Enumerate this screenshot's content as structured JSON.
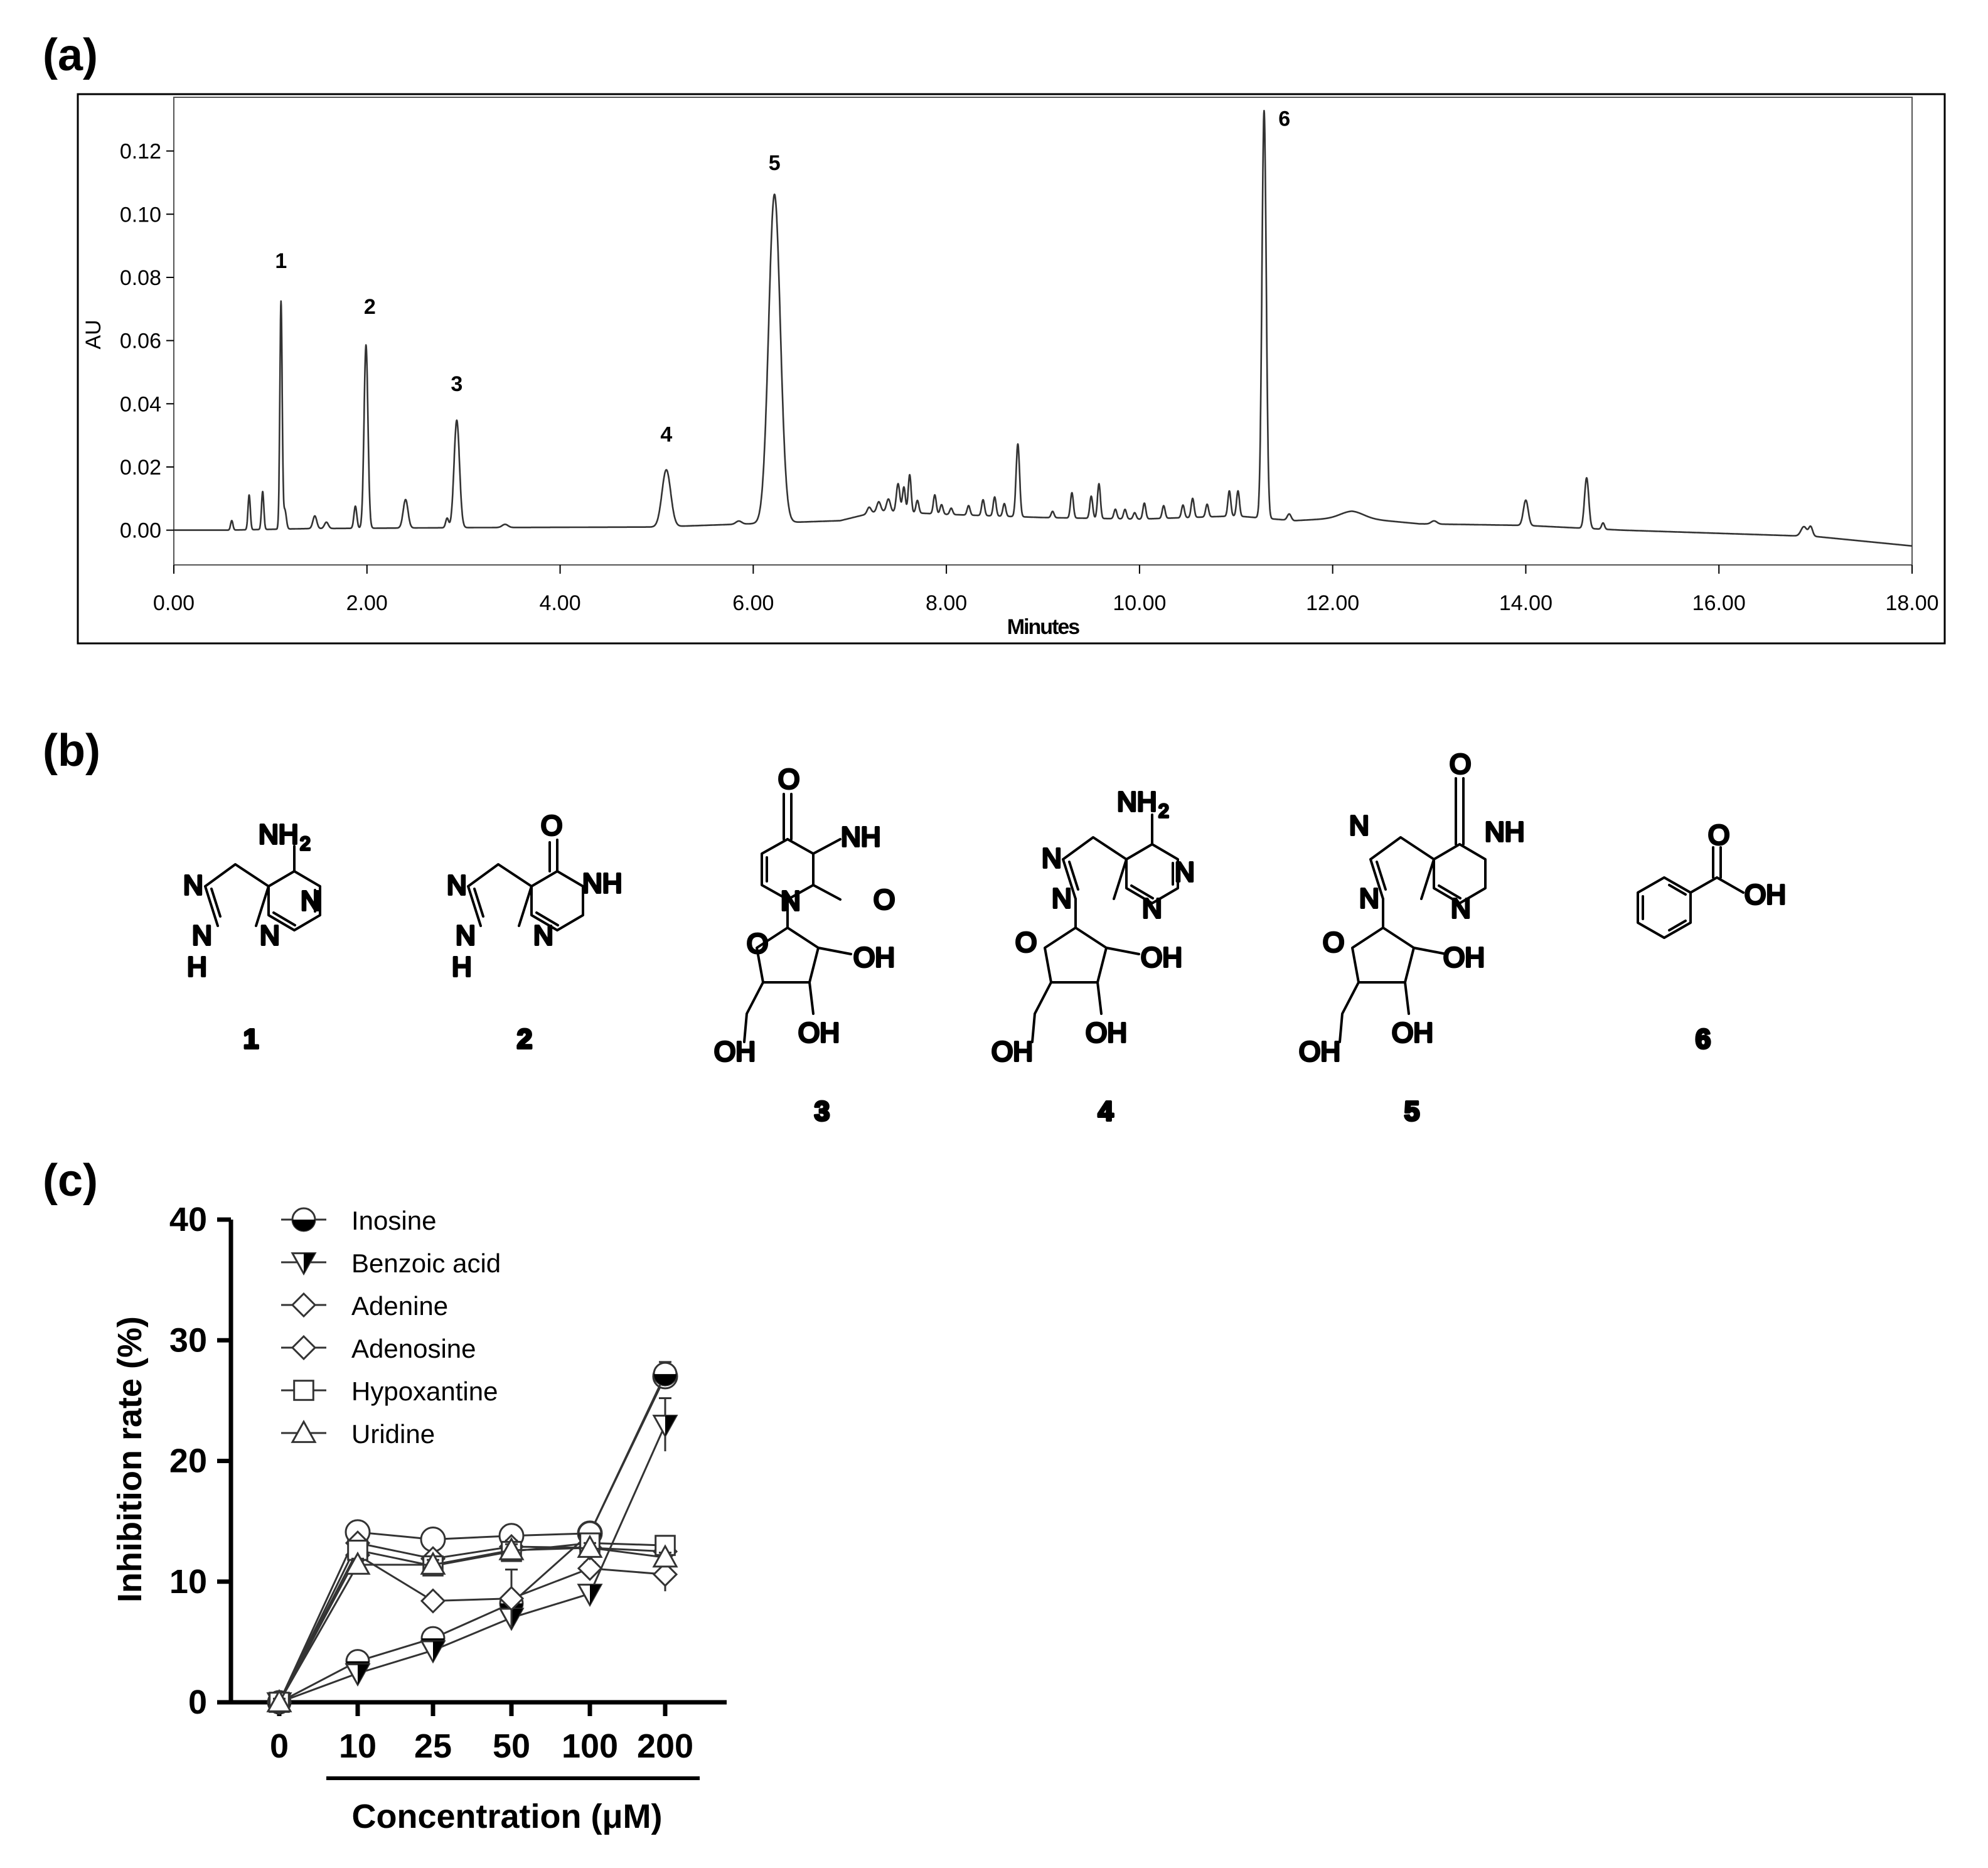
{
  "panels": {
    "a": {
      "label": "(a)",
      "chart_data": {
        "type": "line",
        "xlabel": "Minutes",
        "ylabel": "AU",
        "xlim": [
          0,
          18
        ],
        "ylim": [
          -0.011,
          0.137
        ],
        "x_ticks": [
          0,
          2,
          4,
          6,
          8,
          10,
          12,
          14,
          16,
          18
        ],
        "x_tick_labels": [
          "0.00",
          "2.00",
          "4.00",
          "6.00",
          "8.00",
          "10.00",
          "12.00",
          "14.00",
          "16.00",
          "18.00"
        ],
        "y_ticks": [
          0,
          0.02,
          0.04,
          0.06,
          0.08,
          0.1,
          0.12
        ],
        "y_tick_labels": [
          "0.00",
          "0.02",
          "0.04",
          "0.06",
          "0.08",
          "0.10",
          "0.12"
        ],
        "grid": false,
        "baseline": [
          [
            0,
            0.0
          ],
          [
            0.55,
            0.0
          ],
          [
            1.4,
            0.0005
          ],
          [
            3.0,
            0.0008
          ],
          [
            5.0,
            0.001
          ],
          [
            6.9,
            0.003
          ],
          [
            7.3,
            0.006
          ],
          [
            8.0,
            0.005
          ],
          [
            9.0,
            0.004
          ],
          [
            10.0,
            0.0035
          ],
          [
            11.0,
            0.0045
          ],
          [
            11.6,
            0.003
          ],
          [
            12.2,
            0.004
          ],
          [
            12.9,
            0.002
          ],
          [
            14.0,
            0.0015
          ],
          [
            15.0,
            0.0
          ],
          [
            16.0,
            -0.001
          ],
          [
            17.0,
            -0.002
          ],
          [
            18.0,
            -0.005
          ]
        ],
        "peaks": [
          {
            "t": 0.6,
            "h": 0.003,
            "w": 0.012
          },
          {
            "t": 0.78,
            "h": 0.011,
            "w": 0.012
          },
          {
            "t": 0.92,
            "h": 0.012,
            "w": 0.012
          },
          {
            "t": 1.11,
            "h": 0.072,
            "w": 0.012
          },
          {
            "t": 1.15,
            "h": 0.006,
            "w": 0.015
          },
          {
            "t": 1.46,
            "h": 0.004,
            "w": 0.02
          },
          {
            "t": 1.58,
            "h": 0.002,
            "w": 0.02
          },
          {
            "t": 1.88,
            "h": 0.007,
            "w": 0.015
          },
          {
            "t": 1.99,
            "h": 0.058,
            "w": 0.02
          },
          {
            "t": 2.4,
            "h": 0.009,
            "w": 0.025
          },
          {
            "t": 2.83,
            "h": 0.003,
            "w": 0.015
          },
          {
            "t": 2.93,
            "h": 0.034,
            "w": 0.028
          },
          {
            "t": 3.43,
            "h": 0.001,
            "w": 0.03
          },
          {
            "t": 5.1,
            "h": 0.018,
            "w": 0.045
          },
          {
            "t": 5.85,
            "h": 0.001,
            "w": 0.03
          },
          {
            "t": 6.22,
            "h": 0.104,
            "w": 0.06
          },
          {
            "t": 7.2,
            "h": 0.002,
            "w": 0.02
          },
          {
            "t": 7.3,
            "h": 0.003,
            "w": 0.02
          },
          {
            "t": 7.4,
            "h": 0.004,
            "w": 0.02
          },
          {
            "t": 7.5,
            "h": 0.009,
            "w": 0.018
          },
          {
            "t": 7.56,
            "h": 0.008,
            "w": 0.015
          },
          {
            "t": 7.62,
            "h": 0.012,
            "w": 0.015
          },
          {
            "t": 7.7,
            "h": 0.004,
            "w": 0.015
          },
          {
            "t": 7.88,
            "h": 0.006,
            "w": 0.015
          },
          {
            "t": 7.95,
            "h": 0.003,
            "w": 0.015
          },
          {
            "t": 8.05,
            "h": 0.002,
            "w": 0.015
          },
          {
            "t": 8.23,
            "h": 0.003,
            "w": 0.015
          },
          {
            "t": 8.38,
            "h": 0.005,
            "w": 0.015
          },
          {
            "t": 8.5,
            "h": 0.006,
            "w": 0.015
          },
          {
            "t": 8.6,
            "h": 0.004,
            "w": 0.015
          },
          {
            "t": 8.74,
            "h": 0.023,
            "w": 0.018
          },
          {
            "t": 9.1,
            "h": 0.002,
            "w": 0.015
          },
          {
            "t": 9.3,
            "h": 0.008,
            "w": 0.015
          },
          {
            "t": 9.5,
            "h": 0.007,
            "w": 0.015
          },
          {
            "t": 9.58,
            "h": 0.011,
            "w": 0.015
          },
          {
            "t": 9.75,
            "h": 0.003,
            "w": 0.015
          },
          {
            "t": 9.85,
            "h": 0.003,
            "w": 0.015
          },
          {
            "t": 9.95,
            "h": 0.002,
            "w": 0.015
          },
          {
            "t": 10.05,
            "h": 0.005,
            "w": 0.015
          },
          {
            "t": 10.25,
            "h": 0.004,
            "w": 0.015
          },
          {
            "t": 10.45,
            "h": 0.004,
            "w": 0.015
          },
          {
            "t": 10.55,
            "h": 0.006,
            "w": 0.015
          },
          {
            "t": 10.7,
            "h": 0.004,
            "w": 0.015
          },
          {
            "t": 10.93,
            "h": 0.008,
            "w": 0.015
          },
          {
            "t": 11.02,
            "h": 0.008,
            "w": 0.015
          },
          {
            "t": 11.29,
            "h": 0.129,
            "w": 0.022
          },
          {
            "t": 11.55,
            "h": 0.002,
            "w": 0.02
          },
          {
            "t": 12.2,
            "h": 0.002,
            "w": 0.12
          },
          {
            "t": 13.05,
            "h": 0.001,
            "w": 0.03
          },
          {
            "t": 14.0,
            "h": 0.008,
            "w": 0.025
          },
          {
            "t": 14.63,
            "h": 0.016,
            "w": 0.022
          },
          {
            "t": 14.8,
            "h": 0.002,
            "w": 0.015
          },
          {
            "t": 16.88,
            "h": 0.003,
            "w": 0.03
          },
          {
            "t": 16.95,
            "h": 0.003,
            "w": 0.02
          }
        ],
        "peak_labels": [
          {
            "label": "1",
            "t": 1.11,
            "y": 0.083
          },
          {
            "label": "2",
            "t": 2.03,
            "y": 0.0685
          },
          {
            "label": "3",
            "t": 2.93,
            "y": 0.044
          },
          {
            "label": "4",
            "t": 5.1,
            "y": 0.028
          },
          {
            "label": "5",
            "t": 6.22,
            "y": 0.114
          },
          {
            "label": "6",
            "t": 11.5,
            "y": 0.128
          }
        ]
      }
    },
    "b": {
      "label": "(b)",
      "compounds": [
        {
          "number": "1",
          "atoms": [
            "NH",
            "2",
            "N",
            "N",
            "N",
            "N",
            "H"
          ]
        },
        {
          "number": "2",
          "atoms": [
            "O",
            "NH",
            "N",
            "N",
            "N",
            "H"
          ]
        },
        {
          "number": "3",
          "atoms": [
            "O",
            "NH",
            "O",
            "N",
            "O",
            "OH",
            "OH",
            "OH"
          ]
        },
        {
          "number": "4",
          "atoms": [
            "NH",
            "2",
            "N",
            "N",
            "N",
            "N",
            "O",
            "OH",
            "OH",
            "OH"
          ]
        },
        {
          "number": "5",
          "atoms": [
            "O",
            "N",
            "NH",
            "N",
            "N",
            "O",
            "OH",
            "OH",
            "OH"
          ]
        },
        {
          "number": "6",
          "atoms": [
            "O",
            "OH"
          ]
        }
      ]
    },
    "c": {
      "label": "(c)",
      "chart_data": {
        "type": "line",
        "xlabel": "Concentration (μM)",
        "ylabel": "Inhibition rate (%)",
        "categories": [
          "0",
          "10",
          "25",
          "50",
          "100",
          "200"
        ],
        "ylim": [
          0,
          40
        ],
        "y_ticks": [
          0,
          10,
          20,
          30,
          40
        ],
        "y_tick_labels": [
          "0",
          "10",
          "20",
          "30",
          "40"
        ],
        "legend_position": "top-left",
        "grid": false,
        "series": [
          {
            "name": "Inosine",
            "marker": "circle-half",
            "values": [
              0,
              3.4,
              5.3,
              8.2,
              14.0,
              27.2
            ],
            "errors": [
              0.3,
              0.4,
              0.5,
              0.5,
              0.4,
              1.0
            ]
          },
          {
            "name": "Benzoic acid",
            "marker": "triangle-down-half",
            "values": [
              0,
              2.4,
              4.3,
              7.0,
              9.0,
              23.0
            ],
            "errors": [
              0.3,
              0.4,
              0.5,
              0.6,
              0.5,
              2.2
            ]
          },
          {
            "name": "Adenine",
            "marker": "diamond",
            "values": [
              0,
              12.2,
              8.4,
              8.6,
              11.1,
              10.6
            ],
            "errors": [
              0.3,
              0.5,
              0.5,
              2.4,
              0.5,
              1.4
            ]
          },
          {
            "name": "Adenosine",
            "marker": "diamond",
            "values": [
              0,
              13.2,
              11.9,
              12.9,
              12.8,
              12.5
            ],
            "errors": [
              0.3,
              0.4,
              0.4,
              0.5,
              0.4,
              0.4
            ]
          },
          {
            "name": "Hypoxantine",
            "marker": "square",
            "values": [
              0,
              12.6,
              11.3,
              12.5,
              13.2,
              13.0
            ],
            "errors": [
              0.3,
              0.4,
              0.4,
              0.5,
              0.4,
              0.4
            ]
          },
          {
            "name": "Uridine",
            "marker": "triangle-up",
            "values": [
              0,
              11.4,
              11.4,
              12.6,
              12.8,
              12.0
            ],
            "errors": [
              0.3,
              0.5,
              0.4,
              0.5,
              0.4,
              0.4
            ]
          }
        ],
        "top_series_overlay": {
          "name": "Inosine-open",
          "values": [
            0,
            14.1,
            13.5,
            13.8,
            14.0,
            27.0
          ]
        }
      }
    }
  }
}
